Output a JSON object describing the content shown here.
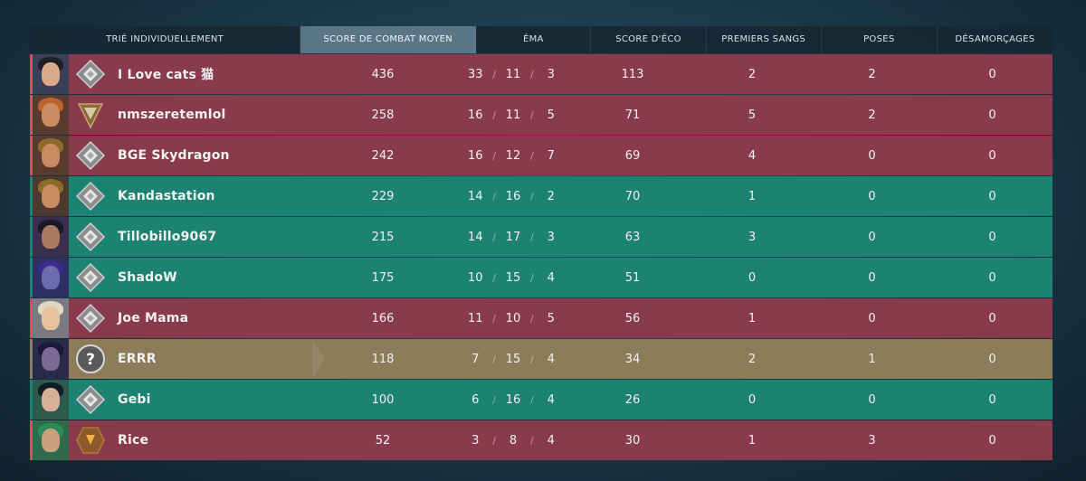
{
  "header": {
    "player": "TRIÉ INDIVIDUELLEMENT",
    "acs": "SCORE DE COMBAT MOYEN",
    "kda": "ÉMA",
    "econ": "SCORE D'ÉCO",
    "first_bloods": "PREMIERS SANGS",
    "plants": "POSES",
    "defuses": "DÉSAMORÇAGES"
  },
  "colors": {
    "team_red": "#8a3a4d",
    "team_green": "#1c8271",
    "highlight_gold": "#8c7c59",
    "sorted_header": "#5a7586"
  },
  "rows": [
    {
      "name": "I Love cats 猫",
      "team": "red",
      "acs": "436",
      "k": "33",
      "d": "11",
      "a": "3",
      "econ": "113",
      "fb": "2",
      "plants": "2",
      "defuses": "0",
      "rank_icon": "silver-rank-icon",
      "agent": "agent-portrait"
    },
    {
      "name": "nmszeretemlol",
      "team": "red",
      "acs": "258",
      "k": "16",
      "d": "11",
      "a": "5",
      "econ": "71",
      "fb": "5",
      "plants": "2",
      "defuses": "0",
      "rank_icon": "gold-rank-icon",
      "agent": "agent-portrait"
    },
    {
      "name": "BGE Skydragon",
      "team": "red",
      "acs": "242",
      "k": "16",
      "d": "12",
      "a": "7",
      "econ": "69",
      "fb": "4",
      "plants": "0",
      "defuses": "0",
      "rank_icon": "silver-rank-icon",
      "agent": "agent-portrait"
    },
    {
      "name": "Kandastation",
      "team": "green",
      "acs": "229",
      "k": "14",
      "d": "16",
      "a": "2",
      "econ": "70",
      "fb": "1",
      "plants": "0",
      "defuses": "0",
      "rank_icon": "silver-rank-icon",
      "agent": "agent-portrait"
    },
    {
      "name": "Tillobillo9067",
      "team": "green",
      "acs": "215",
      "k": "14",
      "d": "17",
      "a": "3",
      "econ": "63",
      "fb": "3",
      "plants": "0",
      "defuses": "0",
      "rank_icon": "silver-rank-icon",
      "agent": "agent-portrait"
    },
    {
      "name": "ShadoW",
      "team": "green",
      "acs": "175",
      "k": "10",
      "d": "15",
      "a": "4",
      "econ": "51",
      "fb": "0",
      "plants": "0",
      "defuses": "0",
      "rank_icon": "silver-rank-icon",
      "agent": "agent-portrait"
    },
    {
      "name": "Joe Mama",
      "team": "red",
      "acs": "166",
      "k": "11",
      "d": "10",
      "a": "5",
      "econ": "56",
      "fb": "1",
      "plants": "0",
      "defuses": "0",
      "rank_icon": "silver-rank-icon",
      "agent": "agent-portrait"
    },
    {
      "name": "ERRR",
      "team": "gold",
      "acs": "118",
      "k": "7",
      "d": "15",
      "a": "4",
      "econ": "34",
      "fb": "2",
      "plants": "1",
      "defuses": "0",
      "rank_icon": "unranked-icon",
      "agent": "agent-portrait"
    },
    {
      "name": "Gebi",
      "team": "green",
      "acs": "100",
      "k": "6",
      "d": "16",
      "a": "4",
      "econ": "26",
      "fb": "0",
      "plants": "0",
      "defuses": "0",
      "rank_icon": "silver-rank-icon",
      "agent": "agent-portrait"
    },
    {
      "name": "Rice",
      "team": "red",
      "acs": "52",
      "k": "3",
      "d": "8",
      "a": "4",
      "econ": "30",
      "fb": "1",
      "plants": "3",
      "defuses": "0",
      "rank_icon": "bronze-rank-icon",
      "agent": "agent-portrait"
    }
  ]
}
